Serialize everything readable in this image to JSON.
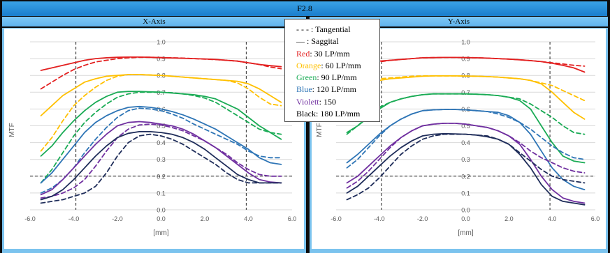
{
  "title": "F2.8",
  "legend": {
    "tangential": "- - - : Tangential",
    "saggital": "— : Saggital",
    "items": [
      {
        "name": "Red",
        "value": ": 30 LP/mm",
        "color": "#e32020"
      },
      {
        "name": "Orange",
        "value": ": 60 LP/mm",
        "color": "#ffc000"
      },
      {
        "name": "Green",
        "value": ": 90 LP/mm",
        "color": "#1aab55"
      },
      {
        "name": "Blue",
        "value": ": 120 LP/mm",
        "color": "#2e75b6"
      },
      {
        "name": "Violett",
        "value": ": 150",
        "color": "#7030a0"
      },
      {
        "name": "Black",
        "value": ": 180 LP/mm",
        "color": "#000000"
      }
    ]
  },
  "chart_data": [
    {
      "type": "line",
      "panel_title": "X-Axis",
      "xlabel": "[mm]",
      "ylabel": "MTF",
      "xlim": [
        -6,
        6
      ],
      "ylim": [
        0,
        1
      ],
      "xticks": [
        "-6.0",
        "-4.0",
        "-2.0",
        "0.0",
        "2.0",
        "4.0",
        "6.0"
      ],
      "yticks": [
        "0.0",
        "0.1",
        "0.2",
        "0.3",
        "0.4",
        "0.5",
        "0.6",
        "0.7",
        "0.8",
        "0.9",
        "1.0"
      ],
      "reference_lines": {
        "x": [
          -3.9,
          3.9
        ],
        "y": [
          0.2
        ]
      },
      "x": [
        -5.5,
        -5,
        -4.5,
        -4,
        -3.5,
        -3,
        -2.5,
        -2,
        -1.5,
        -1,
        -0.5,
        0,
        0.5,
        1,
        1.5,
        2,
        2.5,
        3,
        3.5,
        4,
        4.5,
        5,
        5.5
      ],
      "series": [
        {
          "color": "#e32020",
          "style": "solid",
          "values": [
            0.83,
            0.845,
            0.86,
            0.875,
            0.89,
            0.9,
            0.905,
            0.908,
            0.909,
            0.909,
            0.908,
            0.906,
            0.904,
            0.902,
            0.9,
            0.898,
            0.895,
            0.89,
            0.885,
            0.875,
            0.865,
            0.858,
            0.852
          ]
        },
        {
          "color": "#e32020",
          "style": "dashed",
          "values": [
            0.72,
            0.76,
            0.8,
            0.835,
            0.86,
            0.88,
            0.89,
            0.9,
            0.905,
            0.908,
            0.908,
            0.906,
            0.905,
            0.903,
            0.9,
            0.897,
            0.894,
            0.89,
            0.885,
            0.875,
            0.865,
            0.85,
            0.84
          ]
        },
        {
          "color": "#ffc000",
          "style": "solid",
          "values": [
            0.56,
            0.62,
            0.68,
            0.72,
            0.76,
            0.78,
            0.795,
            0.8,
            0.805,
            0.805,
            0.802,
            0.8,
            0.795,
            0.79,
            0.785,
            0.78,
            0.775,
            0.77,
            0.765,
            0.75,
            0.72,
            0.68,
            0.64
          ]
        },
        {
          "color": "#ffc000",
          "style": "dashed",
          "values": [
            0.35,
            0.43,
            0.53,
            0.62,
            0.68,
            0.73,
            0.77,
            0.795,
            0.805,
            0.805,
            0.803,
            0.8,
            0.795,
            0.79,
            0.785,
            0.78,
            0.775,
            0.77,
            0.755,
            0.72,
            0.67,
            0.63,
            0.62
          ]
        },
        {
          "color": "#1aab55",
          "style": "solid",
          "values": [
            0.32,
            0.38,
            0.46,
            0.53,
            0.59,
            0.64,
            0.675,
            0.7,
            0.705,
            0.705,
            0.702,
            0.7,
            0.695,
            0.69,
            0.685,
            0.675,
            0.66,
            0.63,
            0.6,
            0.55,
            0.5,
            0.46,
            0.42
          ]
        },
        {
          "color": "#1aab55",
          "style": "dashed",
          "values": [
            0.16,
            0.24,
            0.34,
            0.44,
            0.52,
            0.58,
            0.63,
            0.67,
            0.69,
            0.7,
            0.7,
            0.7,
            0.697,
            0.69,
            0.68,
            0.665,
            0.64,
            0.6,
            0.56,
            0.52,
            0.48,
            0.46,
            0.45
          ]
        },
        {
          "color": "#2e75b6",
          "style": "solid",
          "values": [
            0.16,
            0.22,
            0.3,
            0.38,
            0.46,
            0.52,
            0.56,
            0.59,
            0.61,
            0.615,
            0.61,
            0.6,
            0.585,
            0.565,
            0.54,
            0.51,
            0.48,
            0.44,
            0.4,
            0.36,
            0.31,
            0.28,
            0.27
          ]
        },
        {
          "color": "#2e75b6",
          "style": "dashed",
          "values": [
            0.1,
            0.13,
            0.18,
            0.25,
            0.34,
            0.42,
            0.49,
            0.55,
            0.59,
            0.605,
            0.6,
            0.59,
            0.57,
            0.545,
            0.51,
            0.48,
            0.45,
            0.42,
            0.39,
            0.35,
            0.32,
            0.31,
            0.31
          ]
        },
        {
          "color": "#7030a0",
          "style": "solid",
          "values": [
            0.09,
            0.12,
            0.18,
            0.25,
            0.32,
            0.39,
            0.45,
            0.5,
            0.52,
            0.525,
            0.52,
            0.51,
            0.5,
            0.48,
            0.45,
            0.41,
            0.37,
            0.32,
            0.27,
            0.22,
            0.18,
            0.165,
            0.16
          ]
        },
        {
          "color": "#7030a0",
          "style": "dashed",
          "values": [
            0.07,
            0.08,
            0.1,
            0.13,
            0.18,
            0.26,
            0.35,
            0.43,
            0.48,
            0.505,
            0.51,
            0.505,
            0.49,
            0.47,
            0.44,
            0.41,
            0.37,
            0.33,
            0.28,
            0.24,
            0.21,
            0.2,
            0.2
          ]
        },
        {
          "color": "#1f2d5a",
          "style": "solid",
          "values": [
            0.06,
            0.08,
            0.12,
            0.18,
            0.25,
            0.32,
            0.38,
            0.43,
            0.455,
            0.465,
            0.465,
            0.46,
            0.45,
            0.43,
            0.4,
            0.36,
            0.31,
            0.26,
            0.21,
            0.18,
            0.16,
            0.16,
            0.16
          ]
        },
        {
          "color": "#1f2d5a",
          "style": "dashed",
          "values": [
            0.04,
            0.05,
            0.06,
            0.08,
            0.1,
            0.14,
            0.22,
            0.32,
            0.4,
            0.44,
            0.45,
            0.44,
            0.42,
            0.39,
            0.35,
            0.31,
            0.27,
            0.22,
            0.18,
            0.16,
            0.16,
            0.16,
            0.16
          ]
        }
      ]
    },
    {
      "type": "line",
      "panel_title": "Y-Axis",
      "xlabel": "[mm]",
      "ylabel": "MTF",
      "xlim": [
        -6,
        6
      ],
      "ylim": [
        0,
        1
      ],
      "xticks": [
        "-6.0",
        "-4.0",
        "-2.0",
        "0.0",
        "2.0",
        "4.0",
        "6.0"
      ],
      "yticks": [
        "0.0",
        "0.1",
        "0.2",
        "0.3",
        "0.4",
        "0.5",
        "0.6",
        "0.7",
        "0.8",
        "0.9",
        "1.0"
      ],
      "reference_lines": {
        "x": [
          -3.9,
          3.9
        ],
        "y": [
          0.2
        ]
      },
      "x": [
        -5.5,
        -5,
        -4.5,
        -4,
        -3.5,
        -3,
        -2.5,
        -2,
        -1.5,
        -1,
        -0.5,
        0,
        0.5,
        1,
        1.5,
        2,
        2.5,
        3,
        3.5,
        4,
        4.5,
        5,
        5.5
      ],
      "series": [
        {
          "color": "#e32020",
          "style": "solid",
          "values": [
            0.87,
            0.875,
            0.88,
            0.885,
            0.89,
            0.895,
            0.9,
            0.905,
            0.906,
            0.907,
            0.907,
            0.906,
            0.905,
            0.903,
            0.9,
            0.897,
            0.893,
            0.888,
            0.882,
            0.872,
            0.86,
            0.845,
            0.82
          ]
        },
        {
          "color": "#e32020",
          "style": "dashed",
          "values": [
            0.85,
            0.86,
            0.87,
            0.88,
            0.89,
            0.895,
            0.9,
            0.905,
            0.906,
            0.907,
            0.907,
            0.906,
            0.905,
            0.903,
            0.9,
            0.897,
            0.893,
            0.888,
            0.882,
            0.875,
            0.868,
            0.86,
            0.855
          ]
        },
        {
          "color": "#ffc000",
          "style": "solid",
          "values": [
            0.74,
            0.75,
            0.76,
            0.77,
            0.78,
            0.785,
            0.79,
            0.795,
            0.797,
            0.797,
            0.797,
            0.796,
            0.795,
            0.793,
            0.79,
            0.785,
            0.78,
            0.77,
            0.75,
            0.7,
            0.64,
            0.58,
            0.54
          ]
        },
        {
          "color": "#ffc000",
          "style": "dashed",
          "values": [
            0.76,
            0.77,
            0.775,
            0.78,
            0.785,
            0.79,
            0.795,
            0.797,
            0.797,
            0.797,
            0.797,
            0.796,
            0.795,
            0.793,
            0.79,
            0.785,
            0.78,
            0.77,
            0.755,
            0.74,
            0.71,
            0.68,
            0.65
          ]
        },
        {
          "color": "#1aab55",
          "style": "solid",
          "values": [
            0.46,
            0.5,
            0.55,
            0.6,
            0.64,
            0.66,
            0.675,
            0.685,
            0.69,
            0.69,
            0.69,
            0.69,
            0.688,
            0.685,
            0.68,
            0.67,
            0.65,
            0.6,
            0.5,
            0.4,
            0.32,
            0.29,
            0.28
          ]
        },
        {
          "color": "#1aab55",
          "style": "dashed",
          "values": [
            0.45,
            0.5,
            0.56,
            0.61,
            0.64,
            0.66,
            0.675,
            0.685,
            0.69,
            0.69,
            0.69,
            0.69,
            0.688,
            0.685,
            0.68,
            0.67,
            0.66,
            0.63,
            0.59,
            0.55,
            0.5,
            0.46,
            0.45
          ]
        },
        {
          "color": "#2e75b6",
          "style": "solid",
          "values": [
            0.28,
            0.33,
            0.39,
            0.45,
            0.5,
            0.54,
            0.57,
            0.59,
            0.595,
            0.597,
            0.597,
            0.595,
            0.59,
            0.585,
            0.58,
            0.56,
            0.52,
            0.45,
            0.35,
            0.25,
            0.18,
            0.14,
            0.12
          ]
        },
        {
          "color": "#2e75b6",
          "style": "dashed",
          "values": [
            0.25,
            0.3,
            0.37,
            0.44,
            0.5,
            0.54,
            0.57,
            0.59,
            0.595,
            0.597,
            0.597,
            0.595,
            0.59,
            0.585,
            0.57,
            0.55,
            0.52,
            0.48,
            0.43,
            0.38,
            0.34,
            0.31,
            0.3
          ]
        },
        {
          "color": "#7030a0",
          "style": "solid",
          "values": [
            0.16,
            0.2,
            0.26,
            0.32,
            0.38,
            0.43,
            0.47,
            0.5,
            0.51,
            0.515,
            0.515,
            0.51,
            0.5,
            0.49,
            0.47,
            0.44,
            0.39,
            0.3,
            0.2,
            0.12,
            0.07,
            0.05,
            0.04
          ]
        },
        {
          "color": "#7030a0",
          "style": "dashed",
          "values": [
            0.13,
            0.17,
            0.23,
            0.3,
            0.37,
            0.43,
            0.47,
            0.5,
            0.51,
            0.515,
            0.515,
            0.51,
            0.5,
            0.49,
            0.47,
            0.44,
            0.4,
            0.35,
            0.31,
            0.28,
            0.25,
            0.23,
            0.22
          ]
        },
        {
          "color": "#1f2d5a",
          "style": "solid",
          "values": [
            0.1,
            0.14,
            0.2,
            0.26,
            0.32,
            0.37,
            0.41,
            0.44,
            0.45,
            0.453,
            0.452,
            0.45,
            0.445,
            0.435,
            0.42,
            0.39,
            0.33,
            0.25,
            0.15,
            0.08,
            0.05,
            0.04,
            0.03
          ]
        },
        {
          "color": "#1f2d5a",
          "style": "dashed",
          "values": [
            0.06,
            0.09,
            0.13,
            0.19,
            0.26,
            0.33,
            0.38,
            0.42,
            0.44,
            0.45,
            0.45,
            0.45,
            0.445,
            0.44,
            0.42,
            0.39,
            0.34,
            0.29,
            0.24,
            0.2,
            0.18,
            0.17,
            0.16
          ]
        }
      ]
    }
  ]
}
